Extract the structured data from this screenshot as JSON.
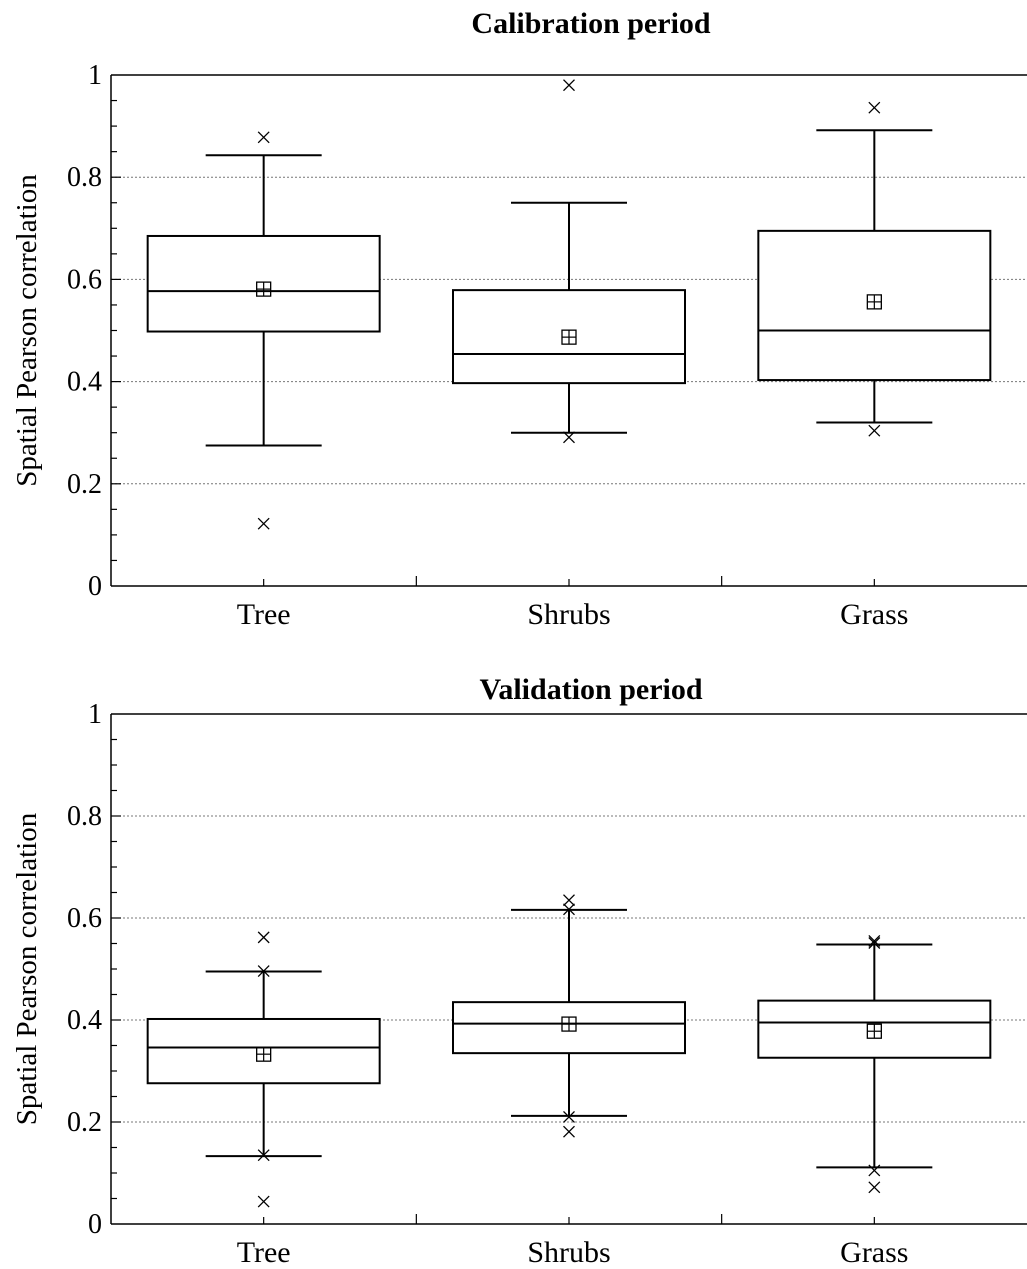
{
  "chart_data": [
    {
      "type": "box",
      "title": "Calibration period",
      "ylabel": "Spatial Pearson correlation",
      "xlabel": "",
      "ylim": [
        0,
        1
      ],
      "yticks": [
        "0",
        "0.2",
        "0.4",
        "0.6",
        "0.8",
        "1"
      ],
      "grid": "horizontal dotted",
      "categories": [
        "Tree",
        "Shrubs",
        "Grass"
      ],
      "boxes": [
        {
          "category": "Tree",
          "whisker_low": 0.275,
          "q1": 0.498,
          "median": 0.577,
          "q3": 0.685,
          "whisker_high": 0.843,
          "mean": 0.581,
          "outliers": [
            0.878,
            0.122
          ]
        },
        {
          "category": "Shrubs",
          "whisker_low": 0.3,
          "q1": 0.397,
          "median": 0.454,
          "q3": 0.579,
          "whisker_high": 0.75,
          "mean": 0.487,
          "outliers": [
            0.98,
            0.291
          ]
        },
        {
          "category": "Grass",
          "whisker_low": 0.32,
          "q1": 0.403,
          "median": 0.5,
          "q3": 0.695,
          "whisker_high": 0.892,
          "mean": 0.556,
          "outliers": [
            0.936,
            0.304
          ]
        }
      ]
    },
    {
      "type": "box",
      "title": "Validation period",
      "ylabel": "Spatial Pearson correlation",
      "xlabel": "",
      "ylim": [
        0,
        1
      ],
      "yticks": [
        "0",
        "0.2",
        "0.4",
        "0.6",
        "0.8",
        "1"
      ],
      "grid": "horizontal dotted",
      "categories": [
        "Tree",
        "Shrubs",
        "Grass"
      ],
      "boxes": [
        {
          "category": "Tree",
          "whisker_low": 0.133,
          "q1": 0.276,
          "median": 0.346,
          "q3": 0.402,
          "whisker_high": 0.495,
          "mean": 0.333,
          "outliers": [
            0.562,
            0.496,
            0.135,
            0.044
          ]
        },
        {
          "category": "Shrubs",
          "whisker_low": 0.212,
          "q1": 0.335,
          "median": 0.393,
          "q3": 0.435,
          "whisker_high": 0.616,
          "mean": 0.392,
          "outliers": [
            0.635,
            0.617,
            0.21,
            0.181
          ]
        },
        {
          "category": "Grass",
          "whisker_low": 0.111,
          "q1": 0.326,
          "median": 0.395,
          "q3": 0.438,
          "whisker_high": 0.548,
          "mean": 0.378,
          "outliers": [
            0.555,
            0.551,
            0.105,
            0.072
          ]
        }
      ]
    }
  ]
}
